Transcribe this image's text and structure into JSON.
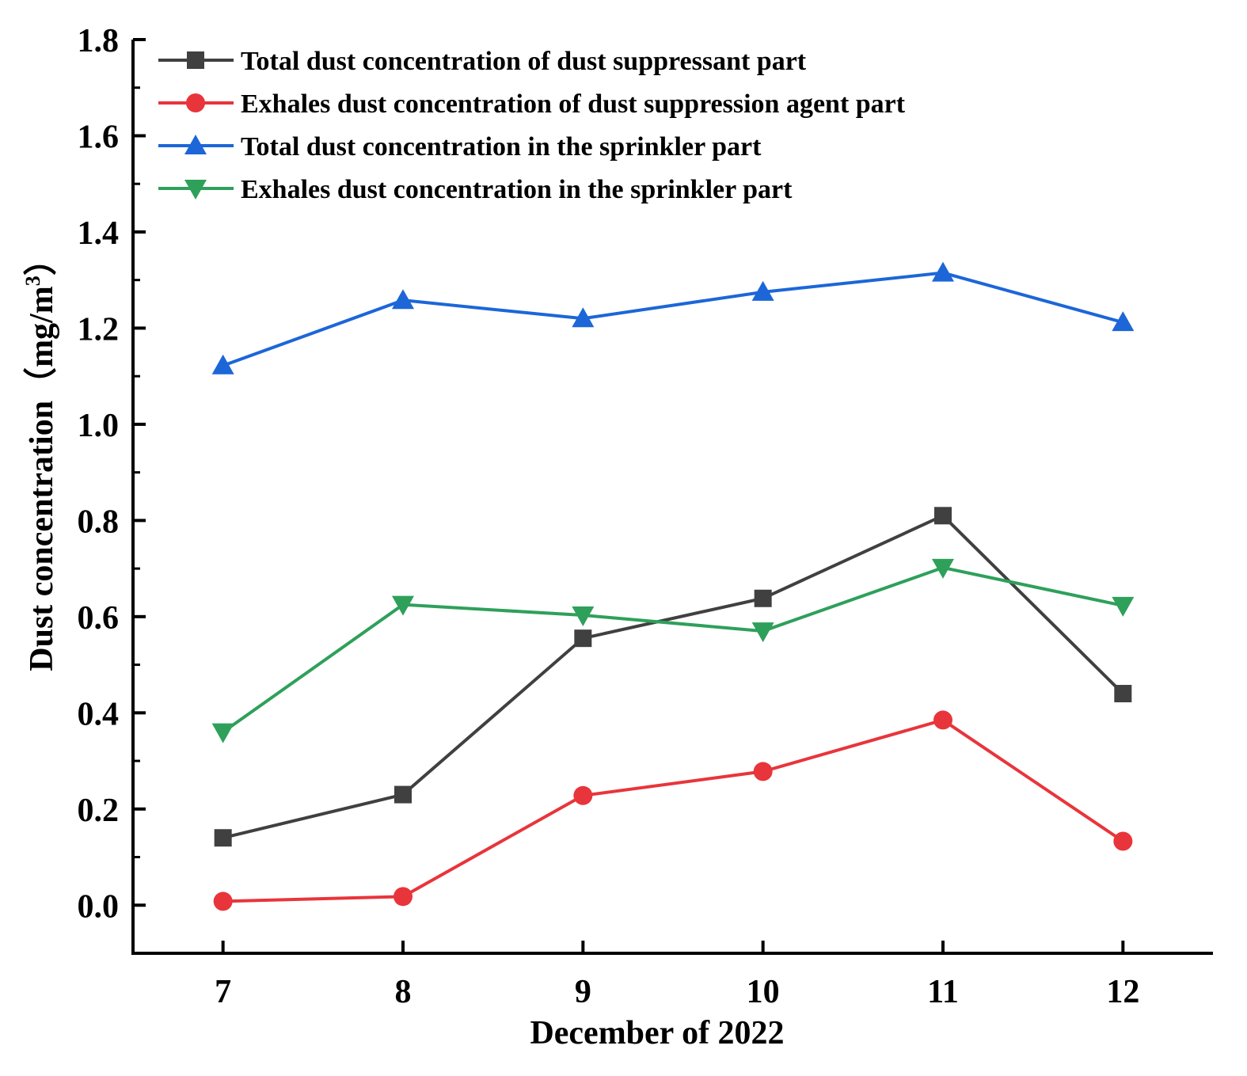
{
  "chart_data": {
    "type": "line",
    "xlabel": "December of 2022",
    "ylabel": "Dust concentration（mg/m",
    "ylabel_sup": "3",
    "ylabel_close": "）",
    "x": [
      7,
      8,
      9,
      10,
      11,
      12
    ],
    "x_tick_labels": [
      "7",
      "8",
      "9",
      "10",
      "11",
      "12"
    ],
    "y_tick_labels": [
      "0.0",
      "0.2",
      "0.4",
      "0.6",
      "0.8",
      "1.0",
      "1.2",
      "1.4",
      "1.6",
      "1.8"
    ],
    "y_ticks": [
      0.0,
      0.2,
      0.4,
      0.6,
      0.8,
      1.0,
      1.2,
      1.4,
      1.6,
      1.8
    ],
    "xlim": [
      6.5,
      12.5
    ],
    "ylim": [
      -0.1,
      1.8
    ],
    "grid": false,
    "legend_position": "top-left",
    "series": [
      {
        "name": "Total dust concentration of dust suppressant part",
        "marker": "square",
        "color": "#404040",
        "values": [
          0.14,
          0.23,
          0.555,
          0.638,
          0.81,
          0.44
        ]
      },
      {
        "name": "Exhales dust concentration of dust suppression agent part",
        "marker": "circle",
        "color": "#e8353b",
        "values": [
          0.008,
          0.018,
          0.228,
          0.278,
          0.385,
          0.133
        ]
      },
      {
        "name": "Total dust concentration in the sprinkler part",
        "marker": "triangle-up",
        "color": "#1c66d8",
        "values": [
          1.122,
          1.258,
          1.22,
          1.275,
          1.315,
          1.212
        ]
      },
      {
        "name": "Exhales dust concentration in the sprinkler part",
        "marker": "triangle-down",
        "color": "#2ea05a",
        "values": [
          0.36,
          0.625,
          0.603,
          0.57,
          0.702,
          0.623
        ]
      }
    ]
  }
}
